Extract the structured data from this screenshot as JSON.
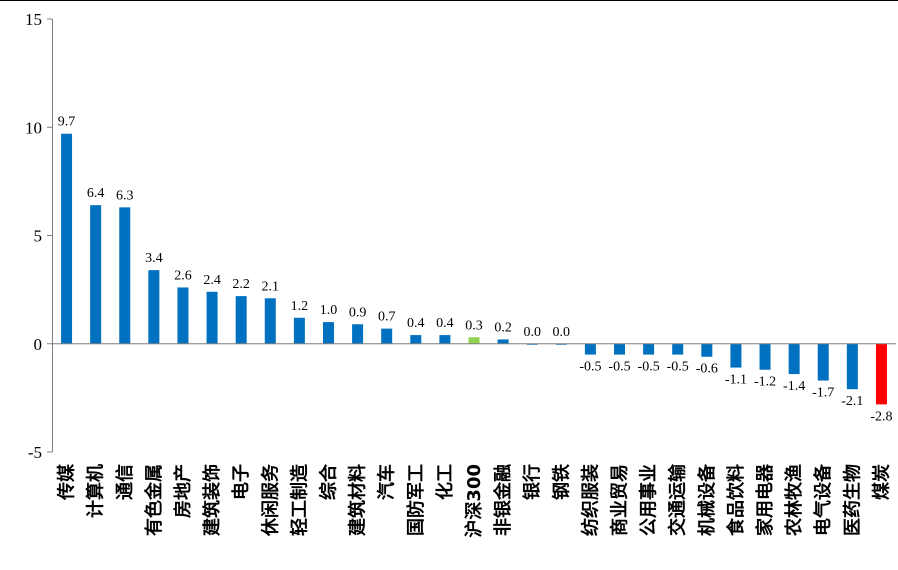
{
  "chart_data": {
    "type": "bar",
    "title": "",
    "xlabel": "",
    "ylabel": "",
    "ylim": [
      -5,
      15
    ],
    "yticks": [
      -5,
      0,
      5,
      10,
      15
    ],
    "ytick_labels": [
      "-5",
      "0",
      "5",
      "10",
      "15"
    ],
    "grid": false,
    "categories": [
      "传媒",
      "计算机",
      "通信",
      "有色金属",
      "房地产",
      "建筑装饰",
      "电子",
      "休闲服务",
      "轻工制造",
      "综合",
      "建筑材料",
      "汽车",
      "国防军工",
      "化工",
      "沪深300",
      "非银金融",
      "银行",
      "钢铁",
      "纺织服装",
      "商业贸易",
      "公用事业",
      "交通运输",
      "机械设备",
      "食品饮料",
      "家用电器",
      "农林牧渔",
      "电气设备",
      "医药生物",
      "煤炭"
    ],
    "values": [
      9.7,
      6.4,
      6.3,
      3.4,
      2.6,
      2.4,
      2.2,
      2.1,
      1.2,
      1.0,
      0.9,
      0.7,
      0.4,
      0.4,
      0.3,
      0.2,
      0.0,
      0.0,
      -0.5,
      -0.5,
      -0.5,
      -0.5,
      -0.6,
      -1.1,
      -1.2,
      -1.4,
      -1.7,
      -2.1,
      -2.8
    ],
    "value_labels": [
      "9.7",
      "6.4",
      "6.3",
      "3.4",
      "2.6",
      "2.4",
      "2.2",
      "2.1",
      "1.2",
      "1.0",
      "0.9",
      "0.7",
      "0.4",
      "0.4",
      "0.3",
      "0.2",
      "0.0",
      "0.0",
      "-0.5",
      "-0.5",
      "-0.5",
      "-0.5",
      "-0.6",
      "-1.1",
      "-1.2",
      "-1.4",
      "-1.7",
      "-2.1",
      "-2.8"
    ],
    "colors": {
      "default": "#0070C0",
      "benchmark": "#92D050",
      "lowest": "#FF0000",
      "axis": "#7F7F7F"
    },
    "highlight": {
      "沪深300": "benchmark",
      "煤炭": "lowest"
    }
  }
}
